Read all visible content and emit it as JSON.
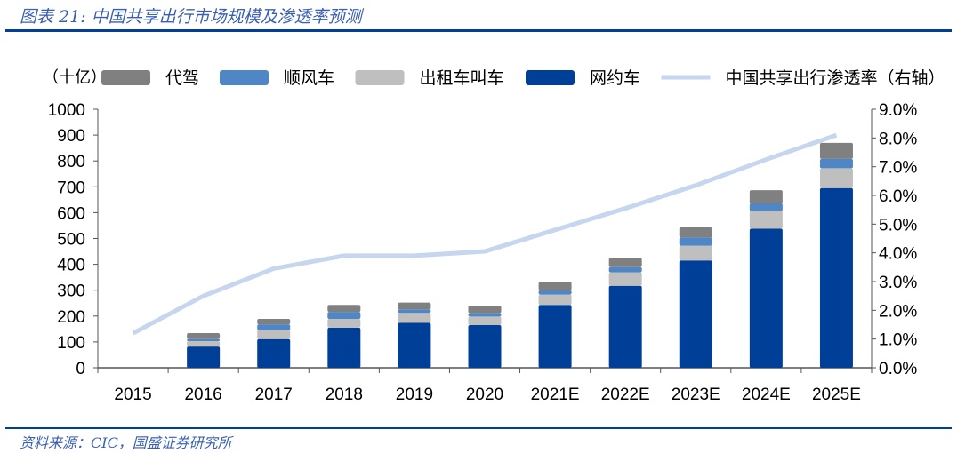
{
  "header": {
    "title": "图表 21:  中国共享出行市场规模及渗透率预测"
  },
  "footer": {
    "source": "资料来源：CIC，国盛证券研究所"
  },
  "chart_data": {
    "type": "bar",
    "stacked": true,
    "unit_label": "（十亿）",
    "categories": [
      "2015",
      "2016",
      "2017",
      "2018",
      "2019",
      "2020",
      "2021E",
      "2022E",
      "2023E",
      "2024E",
      "2025E"
    ],
    "series": [
      {
        "name": "网约车",
        "color": "#003f98",
        "values": [
          0,
          82,
          111,
          155,
          174,
          165,
          243,
          317,
          415,
          538,
          695
        ]
      },
      {
        "name": "出租车叫车",
        "color": "#bfbfbf",
        "values": [
          0,
          21,
          34,
          34,
          38,
          33,
          40,
          52,
          57,
          68,
          77
        ]
      },
      {
        "name": "顺风车",
        "color": "#4f86c6",
        "values": [
          0,
          8,
          23,
          27,
          14,
          13,
          17,
          20,
          32,
          30,
          36
        ]
      },
      {
        "name": "代驾",
        "color": "#808080",
        "values": [
          0,
          23,
          21,
          27,
          26,
          29,
          32,
          36,
          39,
          51,
          62
        ]
      }
    ],
    "line_series": {
      "name": "中国共享出行渗透率（右轴）",
      "color": "#c5d6ee",
      "values": [
        1.2,
        2.5,
        3.45,
        3.9,
        3.9,
        4.05,
        4.8,
        5.55,
        6.35,
        7.25,
        8.1
      ]
    },
    "legend_order": [
      "代驾",
      "顺风车",
      "出租车叫车",
      "网约车",
      "中国共享出行渗透率（右轴）"
    ],
    "ylim": [
      0,
      1000
    ],
    "yticks": [
      "0",
      "100",
      "200",
      "300",
      "400",
      "500",
      "600",
      "700",
      "800",
      "900",
      "1000"
    ],
    "y2lim": [
      0,
      9
    ],
    "y2ticks": [
      "0.0%",
      "1.0%",
      "2.0%",
      "3.0%",
      "4.0%",
      "5.0%",
      "6.0%",
      "7.0%",
      "8.0%",
      "9.0%"
    ],
    "legend_position": "top",
    "grid": false
  }
}
